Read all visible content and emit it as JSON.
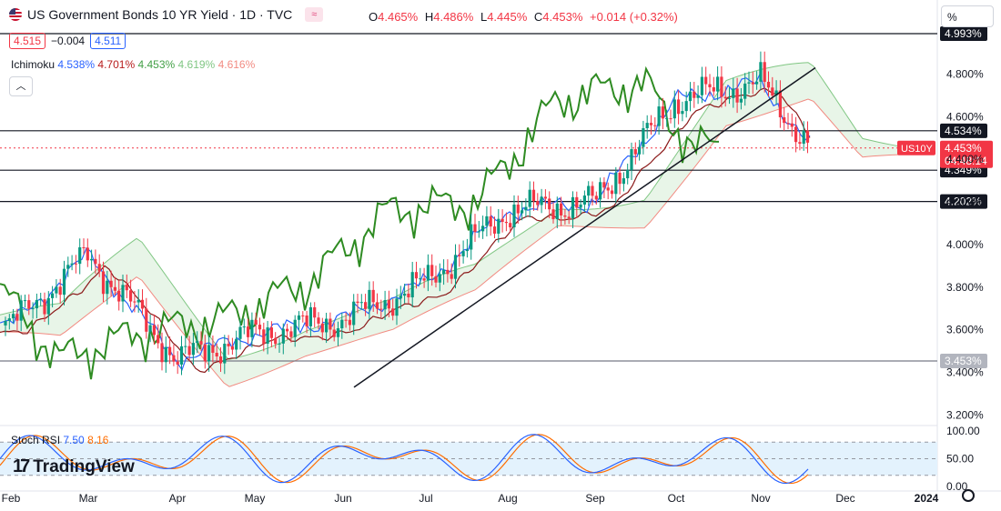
{
  "header": {
    "title": "US Government Bonds 10 YR Yield · 1D · TVC",
    "compare_icon": "≈",
    "ohlc": [
      {
        "k": "O",
        "v": "4.465%"
      },
      {
        "k": "H",
        "v": "4.486%"
      },
      {
        "k": "L",
        "v": "4.445%"
      },
      {
        "k": "C",
        "v": "4.453%"
      },
      {
        "k": "",
        "v": "+0.014 (+0.32%)"
      }
    ],
    "bid": "4.515",
    "spread": "−0.004",
    "ask": "4.511",
    "scale_mode": "%"
  },
  "ichimoku": {
    "label": "Ichimoku",
    "values": [
      "4.538%",
      "4.701%",
      "4.453%",
      "4.619%",
      "4.616%"
    ],
    "colors": [
      "#2962ff",
      "#b71c1c",
      "#43a047",
      "#81c784",
      "#f28b82"
    ]
  },
  "stoch_rsi": {
    "label": "Stoch RSI",
    "k": "7.50",
    "d": "8.16",
    "k_color": "#2962ff",
    "d_color": "#ff6d00"
  },
  "brand": {
    "mark": "17",
    "name": "TradingView"
  },
  "colors": {
    "up": "#089981",
    "down": "#f23645",
    "lagging": "#2e8b22",
    "conversion": "#2962ff",
    "base": "#8b1a1a",
    "cloud_up": "#e6f4e6",
    "cloud_down": "#fde4e4"
  },
  "chart_data": {
    "type": "candlestick",
    "title": "US Government Bonds 10 YR Yield · 1D · TVC",
    "y_axis": {
      "ticks": [
        "4.800%",
        "4.600%",
        "4.400%",
        "4.200%",
        "4.000%",
        "3.800%",
        "3.600%",
        "3.400%",
        "3.200%"
      ],
      "range": [
        3.15,
        5.02
      ],
      "unit": "%"
    },
    "x_axis": {
      "ticks": [
        "Feb",
        "Mar",
        "Apr",
        "May",
        "Jun",
        "Jul",
        "Aug",
        "Sep",
        "Oct",
        "Nov",
        "Dec",
        "2024"
      ]
    },
    "horizontal_levels": [
      {
        "value": 4.534,
        "label": "4.534%"
      },
      {
        "value": 4.349,
        "label": "4.349%"
      },
      {
        "value": 4.202,
        "label": "4.202%"
      },
      {
        "value": 3.453,
        "label": "3.453%"
      },
      {
        "value": 4.99,
        "label": "4.993%"
      }
    ],
    "trendline": {
      "from": [
        "Jun",
        3.33
      ],
      "to": [
        "Nov",
        4.83
      ]
    },
    "current": {
      "symbol": "US10Y",
      "value": "4.453%",
      "countdown": "04:48:14"
    },
    "close_series_monthly": [
      {
        "x": "Feb",
        "y": 3.62
      },
      {
        "x": "Mar",
        "y": 3.95
      },
      {
        "x": "Apr",
        "y": 3.46
      },
      {
        "x": "May",
        "y": 3.58
      },
      {
        "x": "Jun",
        "y": 3.65
      },
      {
        "x": "Jul",
        "y": 3.82
      },
      {
        "x": "Aug",
        "y": 4.16
      },
      {
        "x": "Sep",
        "y": 4.2
      },
      {
        "x": "Oct",
        "y": 4.68
      },
      {
        "x": "Nov",
        "y": 4.76
      },
      {
        "x": "Nov 20",
        "y": 4.453
      }
    ],
    "stoch_rsi_panel": {
      "ticks": [
        "100.00",
        "50.00",
        "0.00"
      ],
      "band": [
        20,
        80
      ]
    }
  }
}
